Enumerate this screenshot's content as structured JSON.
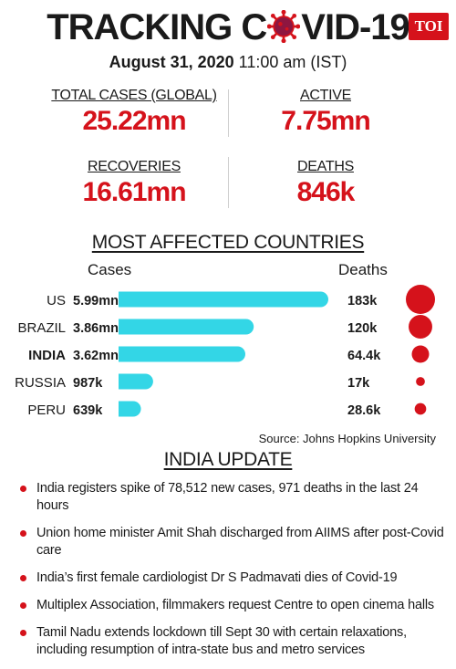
{
  "header": {
    "title_before": "TRACKING C",
    "title_after": "VID-19",
    "logo": "TOI",
    "date_bold": "August 31, 2020",
    "time": " 11:00 am (IST)"
  },
  "stats": [
    {
      "label": "TOTAL CASES (GLOBAL)",
      "value": "25.22mn"
    },
    {
      "label": "ACTIVE",
      "value": "7.75mn"
    },
    {
      "label": "RECOVERIES",
      "value": "16.61mn"
    },
    {
      "label": "DEATHS",
      "value": "846k"
    }
  ],
  "colors": {
    "accent": "#d5121b",
    "bar": "#33d6e6",
    "text": "#1a1a1a"
  },
  "chart_data": {
    "type": "bar",
    "title": "MOST AFFECTED COUNTRIES",
    "cases_header": "Cases",
    "deaths_header": "Deaths",
    "categories": [
      "US",
      "BRAZIL",
      "INDIA",
      "RUSSIA",
      "PERU"
    ],
    "bold_category": "INDIA",
    "series": [
      {
        "name": "Cases",
        "values": [
          5.99,
          3.86,
          3.62,
          0.987,
          0.639
        ],
        "labels": [
          "5.99mn",
          "3.86mn",
          "3.62mn",
          "987k",
          "639k"
        ]
      },
      {
        "name": "Deaths",
        "values": [
          183,
          120,
          64.4,
          17,
          28.6
        ],
        "labels": [
          "183k",
          "120k",
          "64.4k",
          "17k",
          "28.6k"
        ]
      }
    ],
    "source": "Source: Johns Hopkins University"
  },
  "india_update": {
    "title": "INDIA UPDATE",
    "items": [
      "India registers spike of 78,512 new cases, 971 deaths in the last 24 hours",
      "Union home minister Amit Shah discharged from AIIMS after post-Covid care",
      "India’s first female cardiologist Dr S Padmavati dies of Covid-19",
      "Multiplex Association, filmmakers request Centre to open cinema halls",
      "Tamil Nadu extends lockdown till Sept 30 with certain relaxations, including resumption of intra-state bus and metro services"
    ]
  }
}
